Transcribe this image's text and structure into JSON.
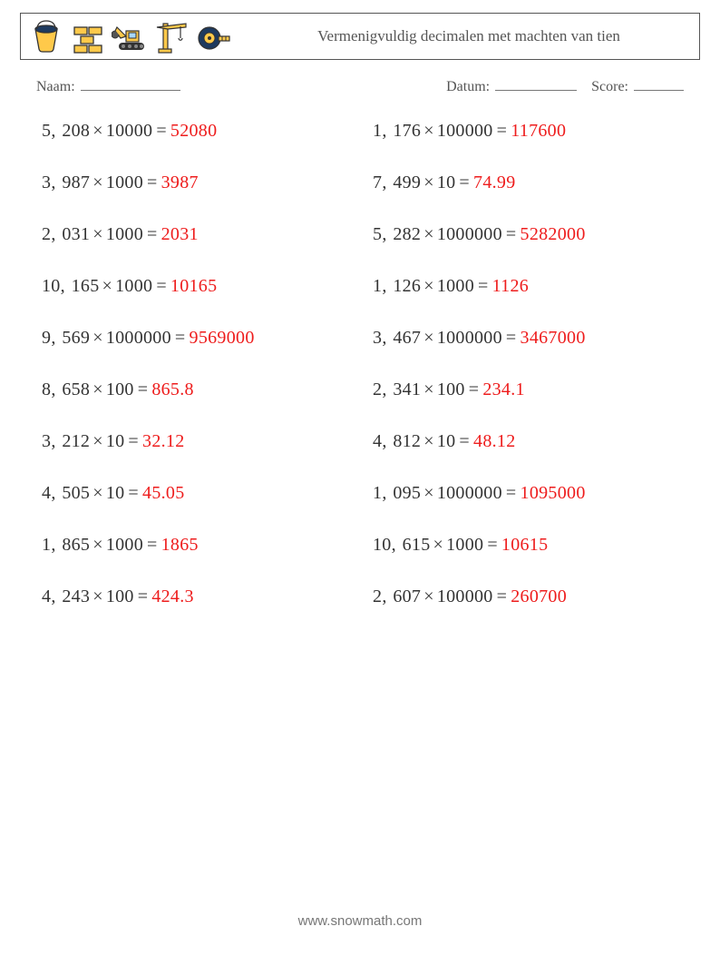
{
  "header": {
    "title": "Vermenigvuldig decimalen met machten van tien",
    "icons": [
      "bucket-icon",
      "bricks-icon",
      "excavator-icon",
      "crane-icon",
      "tape-measure-icon"
    ]
  },
  "meta": {
    "name_label": "Naam:",
    "date_label": "Datum:",
    "score_label": "Score:"
  },
  "style": {
    "text_color": "#333333",
    "answer_color": "#ee1c1c",
    "border_color": "#555555",
    "background_color": "#ffffff",
    "problem_fontsize": 20,
    "title_fontsize": 17,
    "meta_fontsize": 16,
    "footer_fontsize": 15,
    "columns": 2,
    "row_gap": 34
  },
  "problems": {
    "left": [
      {
        "int": "5",
        "dec": "208",
        "power": "10000",
        "answer": "52080"
      },
      {
        "int": "3",
        "dec": "987",
        "power": "1000",
        "answer": "3987"
      },
      {
        "int": "2",
        "dec": "031",
        "power": "1000",
        "answer": "2031"
      },
      {
        "int": "10",
        "dec": "165",
        "power": "1000",
        "answer": "10165"
      },
      {
        "int": "9",
        "dec": "569",
        "power": "1000000",
        "answer": "9569000"
      },
      {
        "int": "8",
        "dec": "658",
        "power": "100",
        "answer": "865.8"
      },
      {
        "int": "3",
        "dec": "212",
        "power": "10",
        "answer": "32.12"
      },
      {
        "int": "4",
        "dec": "505",
        "power": "10",
        "answer": "45.05"
      },
      {
        "int": "1",
        "dec": "865",
        "power": "1000",
        "answer": "1865"
      },
      {
        "int": "4",
        "dec": "243",
        "power": "100",
        "answer": "424.3"
      }
    ],
    "right": [
      {
        "int": "1",
        "dec": "176",
        "power": "100000",
        "answer": "117600"
      },
      {
        "int": "7",
        "dec": "499",
        "power": "10",
        "answer": "74.99"
      },
      {
        "int": "5",
        "dec": "282",
        "power": "1000000",
        "answer": "5282000"
      },
      {
        "int": "1",
        "dec": "126",
        "power": "1000",
        "answer": "1126"
      },
      {
        "int": "3",
        "dec": "467",
        "power": "1000000",
        "answer": "3467000"
      },
      {
        "int": "2",
        "dec": "341",
        "power": "100",
        "answer": "234.1"
      },
      {
        "int": "4",
        "dec": "812",
        "power": "10",
        "answer": "48.12"
      },
      {
        "int": "1",
        "dec": "095",
        "power": "1000000",
        "answer": "1095000"
      },
      {
        "int": "10",
        "dec": "615",
        "power": "1000",
        "answer": "10615"
      },
      {
        "int": "2",
        "dec": "607",
        "power": "100000",
        "answer": "260700"
      }
    ]
  },
  "footer": {
    "text": "www.snowmath.com"
  }
}
